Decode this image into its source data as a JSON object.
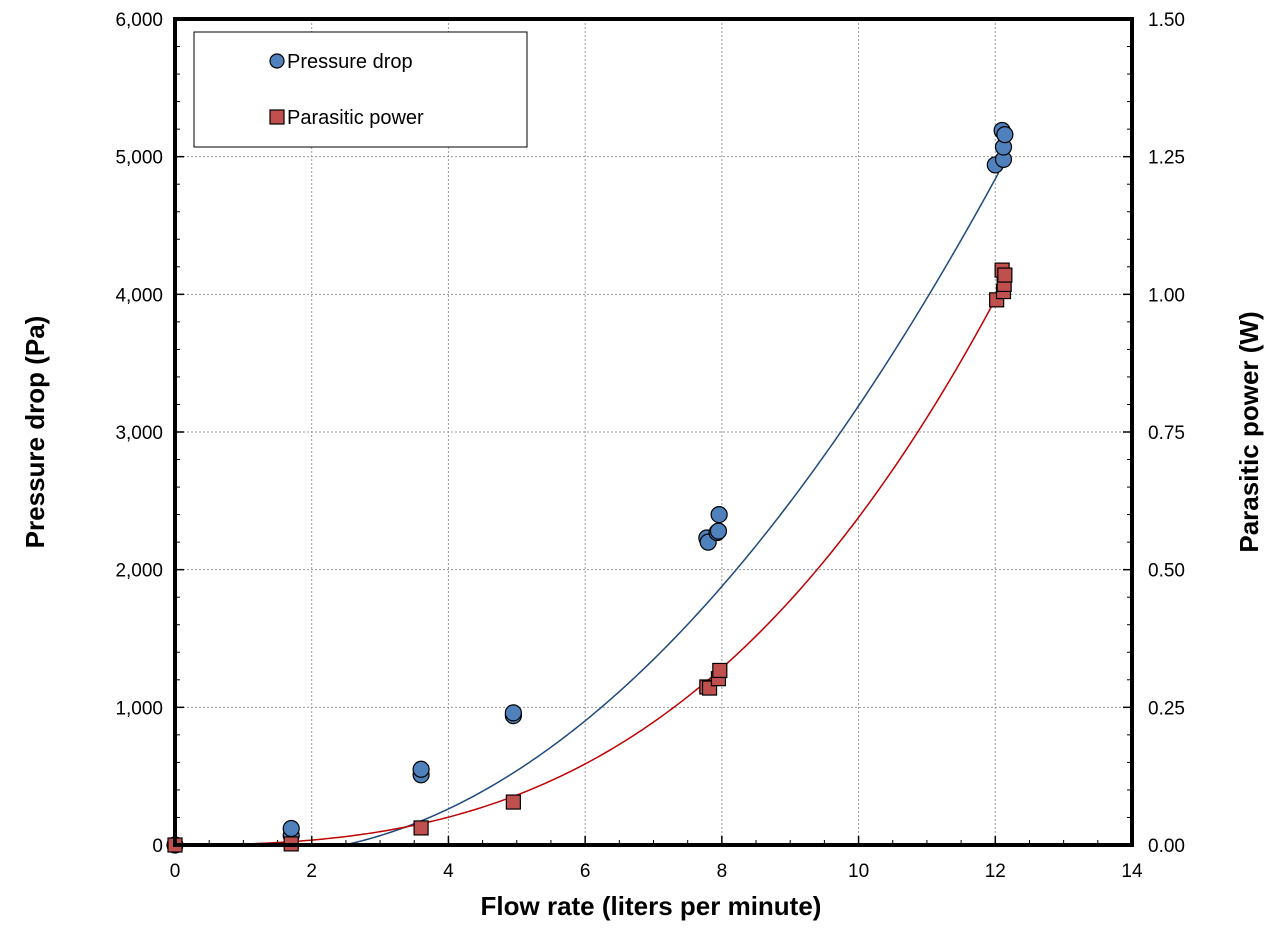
{
  "chart_data": {
    "type": "scatter",
    "xlabel": "Flow rate (liters per minute)",
    "ylabel": "Pressure drop (Pa)",
    "y2label": "Parasitic power (W)",
    "xlim": [
      0,
      14
    ],
    "ylim": [
      0,
      6000
    ],
    "y2lim": [
      0,
      1.5
    ],
    "x_ticks": [
      0,
      2,
      4,
      6,
      8,
      10,
      12,
      14
    ],
    "x_tick_labels": [
      "0",
      "2",
      "4",
      "6",
      "8",
      "10",
      "12",
      "14"
    ],
    "y_ticks": [
      0,
      1000,
      2000,
      3000,
      4000,
      5000,
      6000
    ],
    "y_tick_labels": [
      "0",
      "1,000",
      "2,000",
      "3,000",
      "4,000",
      "5,000",
      "6,000"
    ],
    "y2_ticks": [
      0,
      0.25,
      0.5,
      0.75,
      1.0,
      1.25,
      1.5
    ],
    "y2_tick_labels": [
      "0.00",
      "0.25",
      "0.50",
      "0.75",
      "1.00",
      "1.25",
      "1.50"
    ],
    "grid": true,
    "legend_position": "top-left",
    "series": [
      {
        "name": "Pressure drop",
        "axis": "left",
        "marker": "circle",
        "color": "#4f81bd",
        "trend_color": "#1f497d",
        "points": [
          [
            0,
            0
          ],
          [
            1.7,
            70
          ],
          [
            1.7,
            120
          ],
          [
            3.6,
            510
          ],
          [
            3.6,
            550
          ],
          [
            4.95,
            940
          ],
          [
            4.95,
            960
          ],
          [
            7.78,
            2230
          ],
          [
            7.8,
            2200
          ],
          [
            7.93,
            2270
          ],
          [
            7.95,
            2280
          ],
          [
            7.96,
            2400
          ],
          [
            12.0,
            4940
          ],
          [
            12.1,
            5190
          ],
          [
            12.12,
            4980
          ],
          [
            12.12,
            5070
          ],
          [
            12.14,
            5160
          ]
        ],
        "trendline": {
          "kind": "polynomial",
          "coefficients": [
            -10,
            -100,
            42
          ],
          "from": 0,
          "to": 12.05
        }
      },
      {
        "name": "Parasitic power",
        "axis": "right",
        "marker": "square",
        "color": "#c0504d",
        "trend_color": "#c00000",
        "points": [
          [
            0,
            0
          ],
          [
            1.7,
            0.002
          ],
          [
            3.6,
            0.031
          ],
          [
            4.95,
            0.078
          ],
          [
            7.78,
            0.287
          ],
          [
            7.82,
            0.285
          ],
          [
            7.95,
            0.302
          ],
          [
            7.97,
            0.317
          ],
          [
            12.02,
            0.99
          ],
          [
            12.1,
            1.044
          ],
          [
            12.12,
            1.005
          ],
          [
            12.13,
            1.018
          ],
          [
            12.14,
            1.035
          ]
        ],
        "trendline": {
          "kind": "polynomial",
          "coefficients": [
            0,
            0,
            0.0013,
            0.000465
          ],
          "from": 0,
          "to": 12.0
        }
      }
    ]
  }
}
